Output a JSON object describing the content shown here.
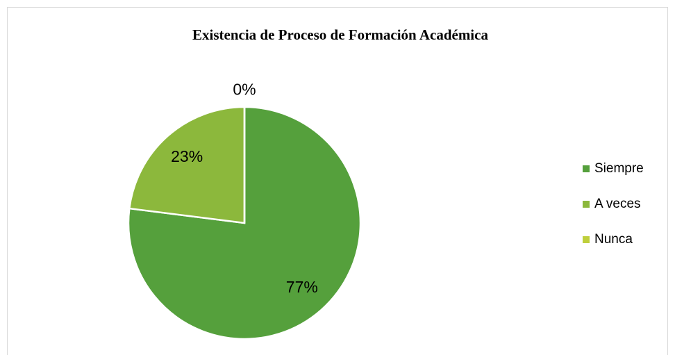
{
  "chart_data": {
    "type": "pie",
    "title": "Existencia de Proceso de Formación Académica",
    "categories": [
      "Siempre",
      "A veces",
      "Nunca"
    ],
    "values": [
      77,
      23,
      0
    ],
    "value_labels": [
      "77%",
      "23%",
      "0%"
    ],
    "colors": [
      "#55a03c",
      "#8cb83c",
      "#bfcf3c"
    ],
    "legend": "right"
  }
}
